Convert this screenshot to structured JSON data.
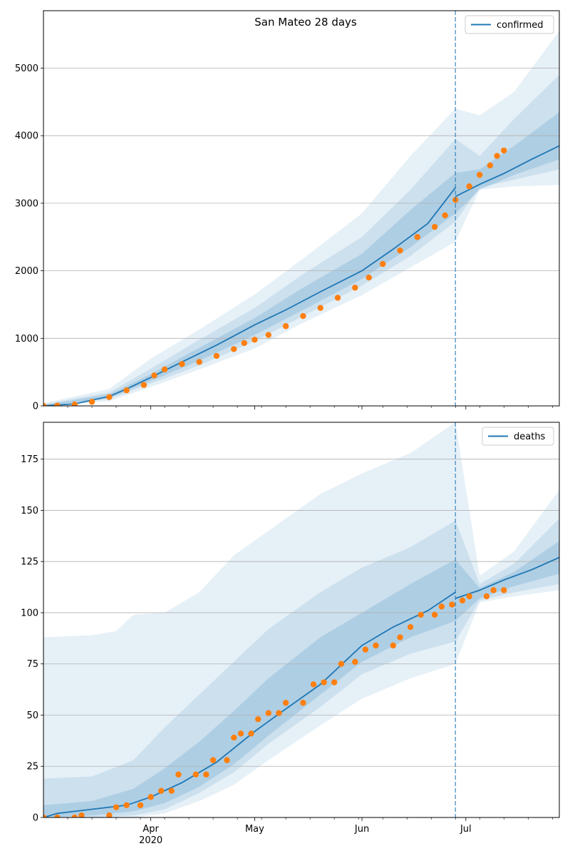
{
  "chart_data": [
    {
      "type": "line",
      "title": "San Mateo 28 days",
      "xlabel": "",
      "ylabel": "",
      "x_axis": {
        "start": "2020-03-01",
        "end": "2020-07-28",
        "major_ticks": [
          {
            "date": "2020-04-01",
            "label": "Apr",
            "sublabel": "2020"
          },
          {
            "date": "2020-05-01",
            "label": "May",
            "sublabel": ""
          },
          {
            "date": "2020-06-01",
            "label": "Jun",
            "sublabel": ""
          },
          {
            "date": "2020-07-01",
            "label": "Jul",
            "sublabel": ""
          }
        ]
      },
      "ylim": [
        0,
        5850
      ],
      "yticks": [
        0,
        1000,
        2000,
        3000,
        4000,
        5000
      ],
      "grid": "horizontal",
      "legend": "top-right",
      "forecast_start": "2020-06-28",
      "colors": {
        "line": "#1f77b4",
        "observed": "#ff7f0e",
        "band": "#1f77b4"
      },
      "series": [
        {
          "name": "confirmed",
          "role": "model",
          "points": [
            [
              "2020-03-01",
              0
            ],
            [
              "2020-03-10",
              30
            ],
            [
              "2020-03-20",
              140
            ],
            [
              "2020-03-25",
              250
            ],
            [
              "2020-04-01",
              420
            ],
            [
              "2020-04-10",
              650
            ],
            [
              "2020-04-20",
              900
            ],
            [
              "2020-05-01",
              1200
            ],
            [
              "2020-05-10",
              1420
            ],
            [
              "2020-05-20",
              1690
            ],
            [
              "2020-06-01",
              2000
            ],
            [
              "2020-06-10",
              2320
            ],
            [
              "2020-06-20",
              2700
            ],
            [
              "2020-06-28",
              3230
            ]
          ]
        },
        {
          "name": "",
          "role": "projection",
          "points": [
            [
              "2020-06-28",
              3100
            ],
            [
              "2020-07-05",
              3280
            ],
            [
              "2020-07-12",
              3440
            ],
            [
              "2020-07-20",
              3650
            ],
            [
              "2020-07-28",
              3850
            ]
          ]
        },
        {
          "name": "",
          "role": "observed",
          "points": [
            [
              "2020-03-01",
              0
            ],
            [
              "2020-03-05",
              5
            ],
            [
              "2020-03-10",
              20
            ],
            [
              "2020-03-15",
              60
            ],
            [
              "2020-03-20",
              130
            ],
            [
              "2020-03-25",
              230
            ],
            [
              "2020-03-30",
              310
            ],
            [
              "2020-04-02",
              450
            ],
            [
              "2020-04-05",
              540
            ],
            [
              "2020-04-10",
              620
            ],
            [
              "2020-04-15",
              650
            ],
            [
              "2020-04-20",
              740
            ],
            [
              "2020-04-25",
              840
            ],
            [
              "2020-04-28",
              930
            ],
            [
              "2020-05-01",
              980
            ],
            [
              "2020-05-05",
              1050
            ],
            [
              "2020-05-10",
              1180
            ],
            [
              "2020-05-15",
              1330
            ],
            [
              "2020-05-20",
              1450
            ],
            [
              "2020-05-25",
              1600
            ],
            [
              "2020-05-30",
              1750
            ],
            [
              "2020-06-03",
              1900
            ],
            [
              "2020-06-07",
              2100
            ],
            [
              "2020-06-12",
              2300
            ],
            [
              "2020-06-17",
              2500
            ],
            [
              "2020-06-22",
              2650
            ],
            [
              "2020-06-25",
              2820
            ],
            [
              "2020-06-28",
              3050
            ],
            [
              "2020-07-02",
              3250
            ],
            [
              "2020-07-05",
              3420
            ],
            [
              "2020-07-08",
              3560
            ],
            [
              "2020-07-10",
              3700
            ],
            [
              "2020-07-12",
              3780
            ]
          ]
        }
      ],
      "bands": [
        {
          "level": "outer",
          "points": [
            [
              "2020-03-01",
              0,
              40
            ],
            [
              "2020-03-20",
              70,
              250
            ],
            [
              "2020-04-01",
              280,
              700
            ],
            [
              "2020-04-15",
              540,
              1130
            ],
            [
              "2020-05-01",
              850,
              1650
            ],
            [
              "2020-05-15",
              1230,
              2180
            ],
            [
              "2020-06-01",
              1640,
              2850
            ],
            [
              "2020-06-15",
              2050,
              3700
            ],
            [
              "2020-06-28",
              2430,
              4400
            ],
            [
              "2020-07-05",
              3200,
              4300
            ],
            [
              "2020-07-15",
              3250,
              4650
            ],
            [
              "2020-07-28",
              3270,
              5550
            ]
          ]
        },
        {
          "level": "middle",
          "points": [
            [
              "2020-03-01",
              0,
              25
            ],
            [
              "2020-03-20",
              100,
              200
            ],
            [
              "2020-04-01",
              330,
              550
            ],
            [
              "2020-04-15",
              600,
              980
            ],
            [
              "2020-05-01",
              960,
              1450
            ],
            [
              "2020-05-15",
              1330,
              1950
            ],
            [
              "2020-06-01",
              1780,
              2500
            ],
            [
              "2020-06-15",
              2220,
              3200
            ],
            [
              "2020-06-28",
              2730,
              3950
            ],
            [
              "2020-07-05",
              3230,
              3700
            ],
            [
              "2020-07-15",
              3350,
              4250
            ],
            [
              "2020-07-28",
              3500,
              4900
            ]
          ]
        },
        {
          "level": "inner",
          "points": [
            [
              "2020-03-01",
              0,
              12
            ],
            [
              "2020-03-20",
              115,
              170
            ],
            [
              "2020-04-01",
              370,
              470
            ],
            [
              "2020-04-15",
              670,
              860
            ],
            [
              "2020-05-01",
              1050,
              1300
            ],
            [
              "2020-05-15",
              1420,
              1750
            ],
            [
              "2020-06-01",
              1880,
              2250
            ],
            [
              "2020-06-15",
              2350,
              2900
            ],
            [
              "2020-06-28",
              2850,
              3450
            ],
            [
              "2020-07-05",
              3200,
              3500
            ],
            [
              "2020-07-15",
              3420,
              3850
            ],
            [
              "2020-07-28",
              3650,
              4350
            ]
          ]
        }
      ]
    },
    {
      "type": "line",
      "title": "",
      "xlabel": "",
      "ylabel": "",
      "x_axis": {
        "start": "2020-03-01",
        "end": "2020-07-28",
        "major_ticks": [
          {
            "date": "2020-04-01",
            "label": "Apr",
            "sublabel": "2020"
          },
          {
            "date": "2020-05-01",
            "label": "May",
            "sublabel": ""
          },
          {
            "date": "2020-06-01",
            "label": "Jun",
            "sublabel": ""
          },
          {
            "date": "2020-07-01",
            "label": "Jul",
            "sublabel": ""
          }
        ]
      },
      "ylim": [
        0,
        193
      ],
      "yticks": [
        0,
        25,
        50,
        75,
        100,
        125,
        150,
        175
      ],
      "grid": "horizontal",
      "legend": "top-right",
      "forecast_start": "2020-06-28",
      "colors": {
        "line": "#1f77b4",
        "observed": "#ff7f0e",
        "band": "#1f77b4"
      },
      "series": [
        {
          "name": "deaths",
          "role": "model",
          "points": [
            [
              "2020-03-01",
              0
            ],
            [
              "2020-03-05",
              2
            ],
            [
              "2020-03-15",
              4
            ],
            [
              "2020-03-25",
              6
            ],
            [
              "2020-04-01",
              10
            ],
            [
              "2020-04-10",
              17
            ],
            [
              "2020-04-20",
              27
            ],
            [
              "2020-05-01",
              42
            ],
            [
              "2020-05-10",
              53
            ],
            [
              "2020-05-20",
              65
            ],
            [
              "2020-06-01",
              84
            ],
            [
              "2020-06-10",
              93
            ],
            [
              "2020-06-20",
              101
            ],
            [
              "2020-06-28",
              110
            ]
          ]
        },
        {
          "name": "",
          "role": "projection",
          "points": [
            [
              "2020-06-28",
              107
            ],
            [
              "2020-07-05",
              111
            ],
            [
              "2020-07-12",
              116
            ],
            [
              "2020-07-20",
              121
            ],
            [
              "2020-07-28",
              127
            ]
          ]
        },
        {
          "name": "",
          "role": "observed",
          "points": [
            [
              "2020-03-01",
              0
            ],
            [
              "2020-03-05",
              0
            ],
            [
              "2020-03-10",
              0
            ],
            [
              "2020-03-12",
              1
            ],
            [
              "2020-03-20",
              1
            ],
            [
              "2020-03-22",
              5
            ],
            [
              "2020-03-25",
              6
            ],
            [
              "2020-03-29",
              6
            ],
            [
              "2020-04-01",
              10
            ],
            [
              "2020-04-04",
              13
            ],
            [
              "2020-04-07",
              13
            ],
            [
              "2020-04-09",
              21
            ],
            [
              "2020-04-14",
              21
            ],
            [
              "2020-04-17",
              21
            ],
            [
              "2020-04-19",
              28
            ],
            [
              "2020-04-23",
              28
            ],
            [
              "2020-04-25",
              39
            ],
            [
              "2020-04-27",
              41
            ],
            [
              "2020-04-30",
              41
            ],
            [
              "2020-05-02",
              48
            ],
            [
              "2020-05-05",
              51
            ],
            [
              "2020-05-08",
              51
            ],
            [
              "2020-05-10",
              56
            ],
            [
              "2020-05-15",
              56
            ],
            [
              "2020-05-18",
              65
            ],
            [
              "2020-05-21",
              66
            ],
            [
              "2020-05-24",
              66
            ],
            [
              "2020-05-26",
              75
            ],
            [
              "2020-05-30",
              76
            ],
            [
              "2020-06-02",
              82
            ],
            [
              "2020-06-05",
              84
            ],
            [
              "2020-06-10",
              84
            ],
            [
              "2020-06-12",
              88
            ],
            [
              "2020-06-15",
              93
            ],
            [
              "2020-06-18",
              99
            ],
            [
              "2020-06-22",
              99
            ],
            [
              "2020-06-24",
              103
            ],
            [
              "2020-06-27",
              104
            ],
            [
              "2020-06-30",
              106
            ],
            [
              "2020-07-02",
              108
            ],
            [
              "2020-07-07",
              108
            ],
            [
              "2020-07-09",
              111
            ],
            [
              "2020-07-12",
              111
            ]
          ]
        }
      ],
      "bands": [
        {
          "level": "outer",
          "points": [
            [
              "2020-03-01",
              0,
              88
            ],
            [
              "2020-03-15",
              0,
              89
            ],
            [
              "2020-03-22",
              0,
              91
            ],
            [
              "2020-03-27",
              0,
              99
            ],
            [
              "2020-04-05",
              2,
              100
            ],
            [
              "2020-04-15",
              8,
              110
            ],
            [
              "2020-04-25",
              16,
              128
            ],
            [
              "2020-05-05",
              28,
              140
            ],
            [
              "2020-05-20",
              45,
              158
            ],
            [
              "2020-06-01",
              58,
              168
            ],
            [
              "2020-06-15",
              68,
              178
            ],
            [
              "2020-06-28",
              75,
              193
            ],
            [
              "2020-07-05",
              105,
              118
            ],
            [
              "2020-07-15",
              108,
              130
            ],
            [
              "2020-07-28",
              111,
              160
            ]
          ]
        },
        {
          "level": "middle",
          "points": [
            [
              "2020-03-01",
              0,
              19
            ],
            [
              "2020-03-15",
              0,
              20
            ],
            [
              "2020-03-27",
              1,
              28
            ],
            [
              "2020-04-05",
              4,
              44
            ],
            [
              "2020-04-15",
              12,
              60
            ],
            [
              "2020-04-25",
              22,
              76
            ],
            [
              "2020-05-05",
              36,
              92
            ],
            [
              "2020-05-20",
              54,
              110
            ],
            [
              "2020-06-01",
              70,
              122
            ],
            [
              "2020-06-15",
              80,
              132
            ],
            [
              "2020-06-28",
              86,
              145
            ],
            [
              "2020-07-05",
              106,
              114
            ],
            [
              "2020-07-15",
              110,
              124
            ],
            [
              "2020-07-28",
              114,
              146
            ]
          ]
        },
        {
          "level": "inner",
          "points": [
            [
              "2020-03-01",
              0,
              6
            ],
            [
              "2020-03-15",
              1,
              8
            ],
            [
              "2020-03-27",
              3,
              14
            ],
            [
              "2020-04-05",
              7,
              24
            ],
            [
              "2020-04-15",
              15,
              37
            ],
            [
              "2020-04-25",
              26,
              52
            ],
            [
              "2020-05-05",
              40,
              68
            ],
            [
              "2020-05-20",
              60,
              88
            ],
            [
              "2020-06-01",
              76,
              100
            ],
            [
              "2020-06-15",
              88,
              114
            ],
            [
              "2020-06-28",
              96,
              126
            ],
            [
              "2020-07-05",
              107,
              112
            ],
            [
              "2020-07-15",
              113,
              120
            ],
            [
              "2020-07-28",
              119,
              135
            ]
          ]
        }
      ]
    }
  ]
}
